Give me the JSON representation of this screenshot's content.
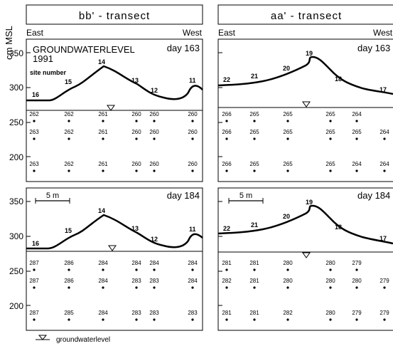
{
  "y_axis_label": "cm MSL",
  "y_ticks": [
    "350",
    "300",
    "250",
    "200"
  ],
  "panels": [
    {
      "title": "bb' - transect",
      "left_label": "East",
      "right_label": "West",
      "top": {
        "day": "day 163",
        "heading": "GROUNDWATERLEVEL",
        "year": "1991",
        "site_label": "site number",
        "sites": [
          "16",
          "15",
          "14",
          "13",
          "12",
          "11"
        ],
        "grid": [
          [
            "262",
            "262",
            "261",
            "260",
            "260",
            "260"
          ],
          [
            "263",
            "262",
            "261",
            "260",
            "260",
            "260"
          ],
          [
            "263",
            "262",
            "261",
            "260",
            "260",
            "260"
          ]
        ]
      },
      "bottom": {
        "day": "day 184",
        "scale": "5 m",
        "sites": [
          "16",
          "15",
          "14",
          "13",
          "12",
          "11"
        ],
        "grid": [
          [
            "287",
            "286",
            "284",
            "284",
            "284",
            "284"
          ],
          [
            "287",
            "286",
            "284",
            "283",
            "283",
            "284"
          ],
          [
            "287",
            "285",
            "284",
            "283",
            "283",
            "283"
          ]
        ]
      }
    },
    {
      "title": "aa' - transect",
      "left_label": "East",
      "right_label": "West",
      "top": {
        "day": "day 163",
        "sites": [
          "22",
          "21",
          "20",
          "19",
          "18",
          "17"
        ],
        "grid": [
          [
            "266",
            "265",
            "265",
            "265",
            "264",
            ""
          ],
          [
            "266",
            "265",
            "265",
            "265",
            "265",
            "264"
          ],
          [
            "266",
            "265",
            "265",
            "265",
            "264",
            "264"
          ]
        ]
      },
      "bottom": {
        "day": "day 184",
        "scale": "5 m",
        "sites": [
          "22",
          "21",
          "20",
          "19",
          "18",
          "17"
        ],
        "grid": [
          [
            "281",
            "281",
            "280",
            "280",
            "279",
            ""
          ],
          [
            "282",
            "281",
            "280",
            "280",
            "280",
            "279"
          ],
          [
            "281",
            "281",
            "282",
            "280",
            "279",
            "279"
          ]
        ]
      }
    }
  ],
  "legend": "groundwaterlevel"
}
